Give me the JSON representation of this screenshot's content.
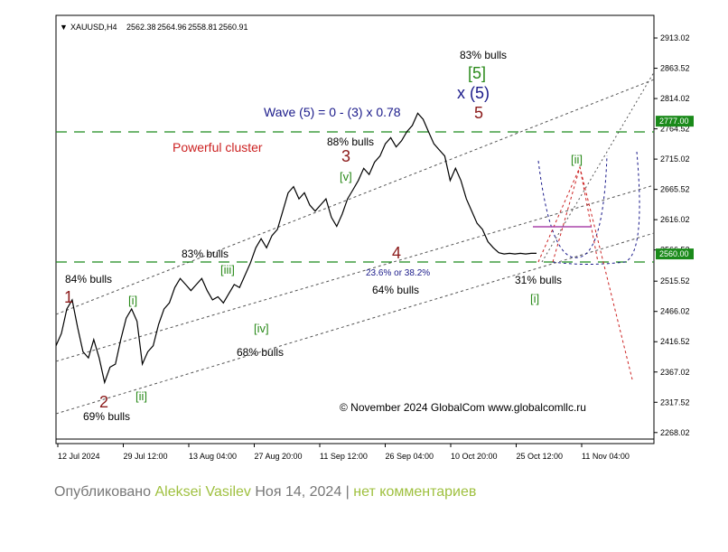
{
  "chart_data": {
    "type": "line",
    "title": "",
    "symbol_header": "XAUUSD,H4",
    "ohlc": [
      "2562.38",
      "2564.96",
      "2558.81",
      "2560.91"
    ],
    "ylim": [
      2250,
      2950
    ],
    "y_ticks": [
      2913.02,
      2863.52,
      2814.02,
      2764.52,
      2715.02,
      2665.52,
      2616.02,
      2566.52,
      2515.52,
      2466.02,
      2416.52,
      2367.02,
      2317.52,
      2268.02
    ],
    "x_tick_labels": [
      "12 Jul 2024",
      "29 Jul 12:00",
      "13 Aug 04:00",
      "27 Aug 20:00",
      "11 Sep 12:00",
      "26 Sep 04:00",
      "10 Oct 20:00",
      "25 Oct 12:00",
      "11 Nov 04:00"
    ],
    "price_badges": [
      {
        "label": "2777.00",
        "value": 2777,
        "color": "#1a8a1a"
      },
      {
        "label": "2560.00",
        "value": 2560,
        "color": "#1a8a1a"
      }
    ],
    "horizontal_levels": [
      2777,
      2560
    ],
    "series": [
      {
        "name": "",
        "x": [
          0,
          6,
          12,
          18,
          24,
          30,
          36,
          42,
          48,
          54,
          60,
          66,
          72,
          78,
          84,
          90,
          96,
          102,
          108,
          114,
          120,
          126,
          132,
          138,
          144,
          150,
          156,
          162,
          168,
          174,
          180,
          186,
          192,
          198,
          204,
          210,
          216,
          222,
          228,
          234,
          240,
          246,
          252,
          258,
          264,
          270,
          276,
          282,
          288,
          294,
          300,
          306,
          312,
          318,
          324,
          330,
          336,
          342,
          348,
          354,
          360,
          366,
          372,
          378,
          384,
          390,
          396,
          402,
          408,
          414,
          420,
          426,
          432,
          438,
          444,
          450,
          456,
          462,
          468,
          474,
          480,
          486,
          492,
          498,
          504,
          510,
          516,
          522,
          528,
          534
        ],
        "y": [
          2410,
          2430,
          2470,
          2485,
          2440,
          2400,
          2390,
          2420,
          2390,
          2350,
          2375,
          2380,
          2420,
          2455,
          2470,
          2450,
          2380,
          2400,
          2410,
          2445,
          2470,
          2480,
          2505,
          2520,
          2510,
          2500,
          2510,
          2520,
          2500,
          2485,
          2490,
          2480,
          2495,
          2510,
          2505,
          2525,
          2545,
          2570,
          2585,
          2570,
          2590,
          2600,
          2630,
          2660,
          2670,
          2650,
          2660,
          2640,
          2630,
          2640,
          2650,
          2620,
          2605,
          2625,
          2650,
          2665,
          2680,
          2700,
          2690,
          2710,
          2720,
          2740,
          2750,
          2735,
          2745,
          2760,
          2770,
          2790,
          2780,
          2760,
          2740,
          2730,
          2720,
          2680,
          2700,
          2680,
          2650,
          2630,
          2610,
          2600,
          2580,
          2570,
          2562,
          2560,
          2561,
          2560,
          2561,
          2560,
          2561,
          2561
        ]
      }
    ],
    "annotations": {
      "wave_formula": "Wave (5) = 0 - (3) x 0.78",
      "cluster": "Powerful cluster",
      "copyright": "© November 2024 GlobalCom www.globalcomllc.ru",
      "fib": "23.6% or 38.2%",
      "bulls": [
        "84% bulls",
        "69% bulls",
        "83% bulls",
        "68% bulls",
        "88% bulls",
        "64% bulls",
        "83% bulls",
        "31% bulls"
      ],
      "waves_major": [
        "1",
        "2",
        "3",
        "4",
        "5"
      ],
      "waves_minor": [
        "[i]",
        "[ii]",
        "[iii]",
        "[iv]",
        "[v]",
        "[5]",
        "[i]",
        "[ii]"
      ],
      "wave_x5": "x (5)"
    }
  },
  "footer": {
    "prefix": "Опубликовано",
    "author": "Aleksei Vasilev",
    "date": "Ноя 14, 2024",
    "separator": "|",
    "comments": "нет комментариев"
  }
}
